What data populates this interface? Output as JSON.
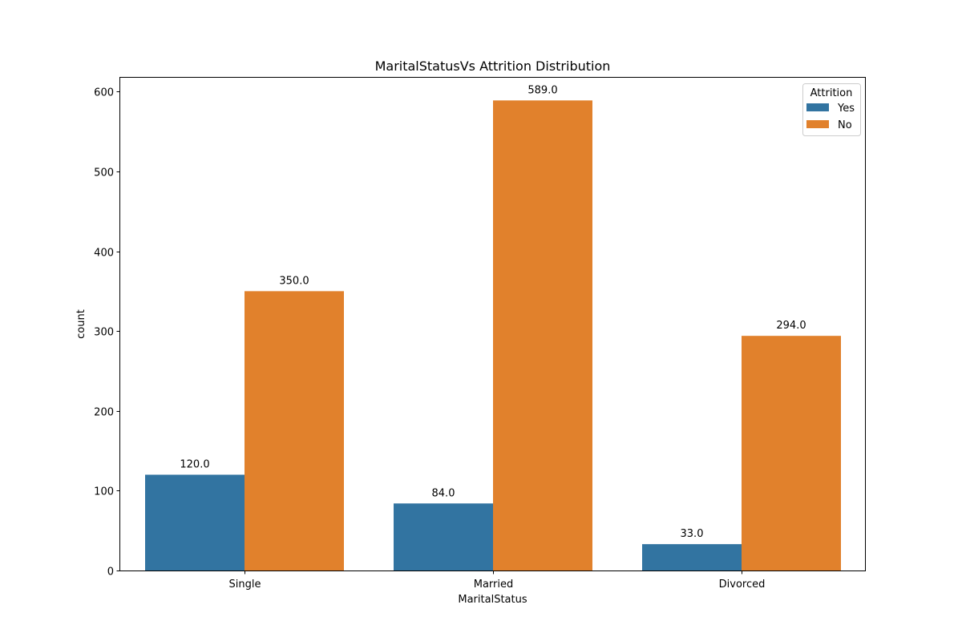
{
  "chart_data": {
    "type": "bar",
    "title": "MaritalStatusVs Attrition Distribution",
    "xlabel": "MaritalStatus",
    "ylabel": "count",
    "categories": [
      "Single",
      "Married",
      "Divorced"
    ],
    "series": [
      {
        "name": "Yes",
        "values": [
          120,
          84,
          33
        ],
        "color": "#3274a1"
      },
      {
        "name": "No",
        "values": [
          350,
          589,
          294
        ],
        "color": "#e1812c"
      }
    ],
    "value_labels": [
      [
        "120.0",
        "84.0",
        "33.0"
      ],
      [
        "350.0",
        "589.0",
        "294.0"
      ]
    ],
    "ylim": [
      0,
      618.45
    ],
    "yticks": [
      0,
      100,
      200,
      300,
      400,
      500,
      600
    ],
    "grid": false,
    "legend": {
      "title": "Attrition",
      "placement": "top-right"
    }
  }
}
